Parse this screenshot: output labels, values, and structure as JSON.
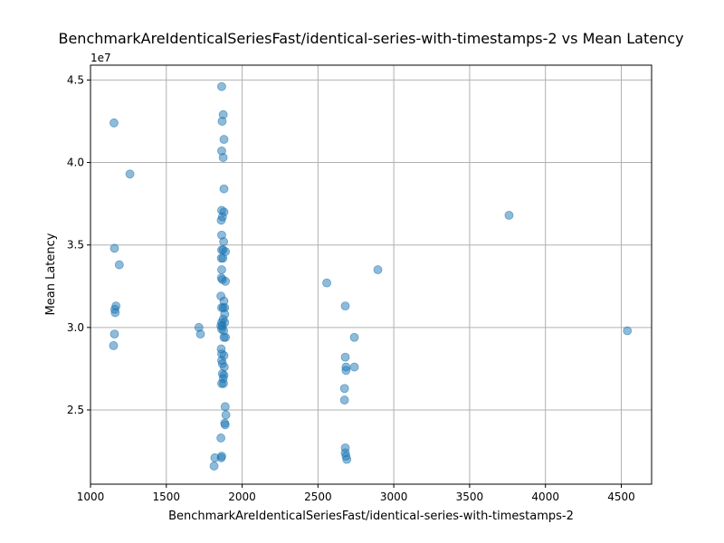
{
  "chart_data": {
    "type": "scatter",
    "title": "BenchmarkAreIdenticalSeriesFast/identical-series-with-timestamps-2 vs Mean Latency",
    "xlabel": "BenchmarkAreIdenticalSeriesFast/identical-series-with-timestamps-2",
    "ylabel": "Mean Latency",
    "y_offset_label": "1e7",
    "xlim": [
      1000,
      4700
    ],
    "ylim": [
      20500000.0,
      45900000.0
    ],
    "x_ticks": [
      1000,
      1500,
      2000,
      2500,
      3000,
      3500,
      4000,
      4500
    ],
    "x_tick_labels": [
      "1000",
      "1500",
      "2000",
      "2500",
      "3000",
      "3500",
      "4000",
      "4500"
    ],
    "y_ticks": [
      25000000.0,
      30000000.0,
      35000000.0,
      40000000.0,
      45000000.0
    ],
    "y_tick_labels": [
      "2.5",
      "3.0",
      "3.5",
      "4.0",
      "4.5"
    ],
    "grid": true,
    "legend": "none",
    "marker_color": "#1f77b4",
    "marker_alpha": 0.5,
    "points": [
      {
        "x": 1155,
        "y": 42400000.0
      },
      {
        "x": 1260,
        "y": 39300000.0
      },
      {
        "x": 1158,
        "y": 34800000.0
      },
      {
        "x": 1190,
        "y": 33800000.0
      },
      {
        "x": 1168,
        "y": 31300000.0
      },
      {
        "x": 1160,
        "y": 31100000.0
      },
      {
        "x": 1163,
        "y": 30900000.0
      },
      {
        "x": 1158,
        "y": 29600000.0
      },
      {
        "x": 1152,
        "y": 28900000.0
      },
      {
        "x": 1715,
        "y": 30000000.0
      },
      {
        "x": 1725,
        "y": 29600000.0
      },
      {
        "x": 1865,
        "y": 44600000.0
      },
      {
        "x": 1875,
        "y": 42900000.0
      },
      {
        "x": 1868,
        "y": 42500000.0
      },
      {
        "x": 1880,
        "y": 41400000.0
      },
      {
        "x": 1865,
        "y": 40700000.0
      },
      {
        "x": 1875,
        "y": 40300000.0
      },
      {
        "x": 1880,
        "y": 38400000.0
      },
      {
        "x": 1865,
        "y": 37100000.0
      },
      {
        "x": 1880,
        "y": 37000000.0
      },
      {
        "x": 1870,
        "y": 36700000.0
      },
      {
        "x": 1862,
        "y": 36500000.0
      },
      {
        "x": 1865,
        "y": 35600000.0
      },
      {
        "x": 1878,
        "y": 35200000.0
      },
      {
        "x": 1865,
        "y": 34700000.0
      },
      {
        "x": 1875,
        "y": 34700000.0
      },
      {
        "x": 1890,
        "y": 34600000.0
      },
      {
        "x": 1863,
        "y": 34200000.0
      },
      {
        "x": 1873,
        "y": 34200000.0
      },
      {
        "x": 1865,
        "y": 33500000.0
      },
      {
        "x": 1863,
        "y": 33000000.0
      },
      {
        "x": 1870,
        "y": 32900000.0
      },
      {
        "x": 1890,
        "y": 32800000.0
      },
      {
        "x": 1860,
        "y": 31900000.0
      },
      {
        "x": 1880,
        "y": 31600000.0
      },
      {
        "x": 1865,
        "y": 31200000.0
      },
      {
        "x": 1875,
        "y": 31200000.0
      },
      {
        "x": 1885,
        "y": 31200000.0
      },
      {
        "x": 1885,
        "y": 30800000.0
      },
      {
        "x": 1875,
        "y": 30500000.0
      },
      {
        "x": 1865,
        "y": 30300000.0
      },
      {
        "x": 1885,
        "y": 30300000.0
      },
      {
        "x": 1860,
        "y": 30100000.0
      },
      {
        "x": 1870,
        "y": 30100000.0
      },
      {
        "x": 1865,
        "y": 29900000.0
      },
      {
        "x": 1878,
        "y": 29800000.0
      },
      {
        "x": 1880,
        "y": 29400000.0
      },
      {
        "x": 1890,
        "y": 29400000.0
      },
      {
        "x": 1862,
        "y": 28700000.0
      },
      {
        "x": 1865,
        "y": 28400000.0
      },
      {
        "x": 1880,
        "y": 28300000.0
      },
      {
        "x": 1865,
        "y": 28000000.0
      },
      {
        "x": 1870,
        "y": 27800000.0
      },
      {
        "x": 1882,
        "y": 27600000.0
      },
      {
        "x": 1870,
        "y": 27200000.0
      },
      {
        "x": 1880,
        "y": 27100000.0
      },
      {
        "x": 1875,
        "y": 26900000.0
      },
      {
        "x": 1865,
        "y": 26600000.0
      },
      {
        "x": 1877,
        "y": 26600000.0
      },
      {
        "x": 1888,
        "y": 25200000.0
      },
      {
        "x": 1893,
        "y": 24700000.0
      },
      {
        "x": 1885,
        "y": 24200000.0
      },
      {
        "x": 1888,
        "y": 24100000.0
      },
      {
        "x": 1860,
        "y": 23300000.0
      },
      {
        "x": 1865,
        "y": 22200000.0
      },
      {
        "x": 1862,
        "y": 22100000.0
      },
      {
        "x": 1820,
        "y": 22100000.0
      },
      {
        "x": 1815,
        "y": 21600000.0
      },
      {
        "x": 2558,
        "y": 32700000.0
      },
      {
        "x": 2895,
        "y": 33500000.0
      },
      {
        "x": 2680,
        "y": 31300000.0
      },
      {
        "x": 2740,
        "y": 29400000.0
      },
      {
        "x": 2680,
        "y": 28200000.0
      },
      {
        "x": 2685,
        "y": 27600000.0
      },
      {
        "x": 2740,
        "y": 27600000.0
      },
      {
        "x": 2685,
        "y": 27400000.0
      },
      {
        "x": 2675,
        "y": 26300000.0
      },
      {
        "x": 2675,
        "y": 25600000.0
      },
      {
        "x": 2680,
        "y": 22700000.0
      },
      {
        "x": 2680,
        "y": 22400000.0
      },
      {
        "x": 2685,
        "y": 22200000.0
      },
      {
        "x": 2690,
        "y": 22000000.0
      },
      {
        "x": 3760,
        "y": 36800000.0
      },
      {
        "x": 4540,
        "y": 29800000.0
      }
    ]
  }
}
